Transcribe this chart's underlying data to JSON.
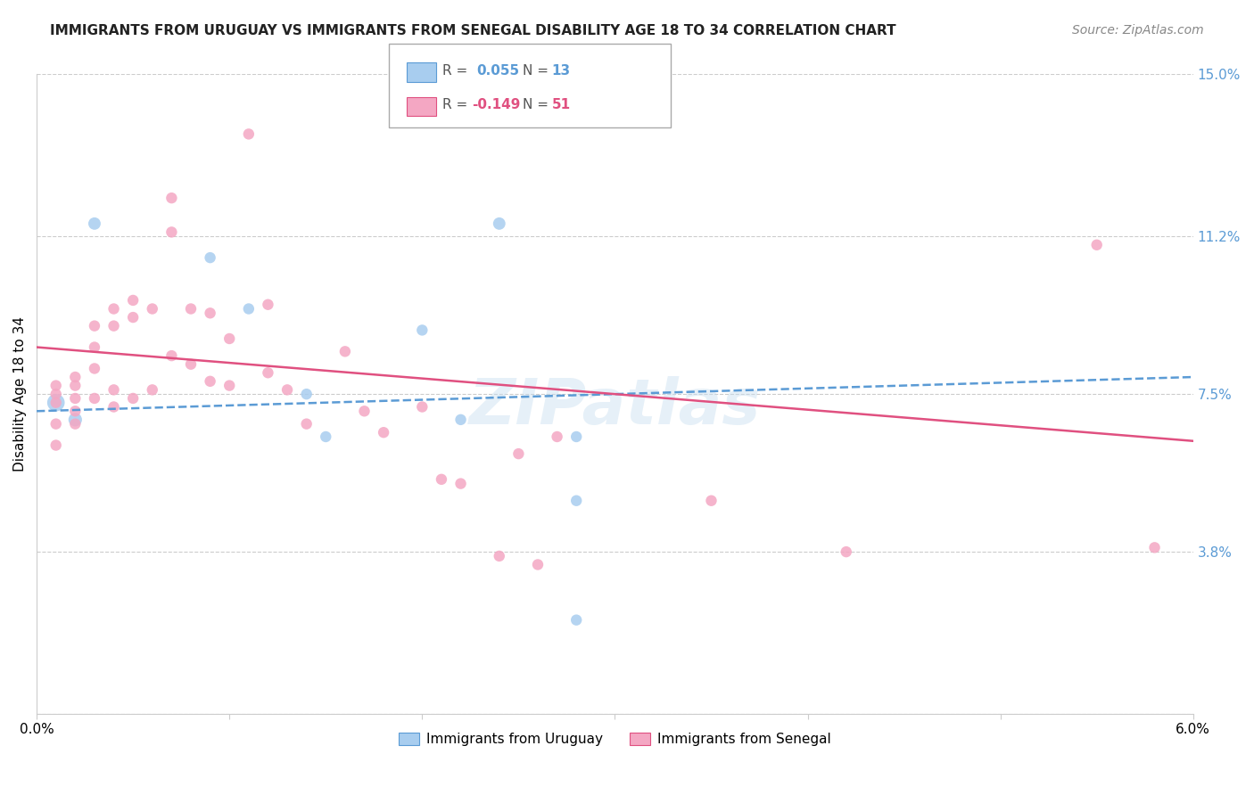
{
  "title": "IMMIGRANTS FROM URUGUAY VS IMMIGRANTS FROM SENEGAL DISABILITY AGE 18 TO 34 CORRELATION CHART",
  "source": "Source: ZipAtlas.com",
  "ylabel": "Disability Age 18 to 34",
  "xlim": [
    0.0,
    0.06
  ],
  "ylim": [
    0.0,
    0.15
  ],
  "xticks": [
    0.0,
    0.01,
    0.02,
    0.03,
    0.04,
    0.05,
    0.06
  ],
  "xticklabels": [
    "0.0%",
    "",
    "",
    "",
    "",
    "",
    "6.0%"
  ],
  "ytick_positions": [
    0.0,
    0.038,
    0.075,
    0.112,
    0.15
  ],
  "ytick_labels": [
    "",
    "3.8%",
    "7.5%",
    "11.2%",
    "15.0%"
  ],
  "grid_color": "#cccccc",
  "background_color": "#ffffff",
  "watermark": "ZIPatlas",
  "series": [
    {
      "name": "Immigrants from Uruguay",
      "R": 0.055,
      "N": 13,
      "marker_color": "#A8CDEF",
      "line_color": "#5B9BD5",
      "line_style": "--",
      "trend_x": [
        0.0,
        0.06
      ],
      "trend_y": [
        0.071,
        0.079
      ],
      "x": [
        0.001,
        0.002,
        0.003,
        0.009,
        0.011,
        0.014,
        0.015,
        0.02,
        0.022,
        0.024,
        0.028,
        0.028,
        0.028
      ],
      "y": [
        0.073,
        0.069,
        0.115,
        0.107,
        0.095,
        0.075,
        0.065,
        0.09,
        0.069,
        0.115,
        0.065,
        0.05,
        0.022
      ],
      "sizes": [
        200,
        120,
        100,
        80,
        80,
        80,
        80,
        80,
        80,
        100,
        80,
        80,
        80
      ]
    },
    {
      "name": "Immigrants from Senegal",
      "R": -0.149,
      "N": 51,
      "marker_color": "#F4A7C3",
      "line_color": "#E05080",
      "line_style": "-",
      "trend_x": [
        0.0,
        0.06
      ],
      "trend_y": [
        0.086,
        0.064
      ],
      "x": [
        0.001,
        0.001,
        0.001,
        0.001,
        0.001,
        0.002,
        0.002,
        0.002,
        0.002,
        0.002,
        0.003,
        0.003,
        0.003,
        0.003,
        0.004,
        0.004,
        0.004,
        0.004,
        0.005,
        0.005,
        0.005,
        0.006,
        0.006,
        0.007,
        0.007,
        0.007,
        0.008,
        0.008,
        0.009,
        0.009,
        0.01,
        0.01,
        0.011,
        0.012,
        0.012,
        0.013,
        0.014,
        0.016,
        0.017,
        0.018,
        0.02,
        0.021,
        0.022,
        0.024,
        0.025,
        0.026,
        0.027,
        0.035,
        0.042,
        0.055,
        0.058
      ],
      "y": [
        0.077,
        0.075,
        0.073,
        0.068,
        0.063,
        0.079,
        0.077,
        0.074,
        0.071,
        0.068,
        0.091,
        0.086,
        0.081,
        0.074,
        0.095,
        0.091,
        0.076,
        0.072,
        0.097,
        0.093,
        0.074,
        0.095,
        0.076,
        0.121,
        0.113,
        0.084,
        0.095,
        0.082,
        0.094,
        0.078,
        0.088,
        0.077,
        0.136,
        0.096,
        0.08,
        0.076,
        0.068,
        0.085,
        0.071,
        0.066,
        0.072,
        0.055,
        0.054,
        0.037,
        0.061,
        0.035,
        0.065,
        0.05,
        0.038,
        0.11,
        0.039
      ],
      "sizes": [
        80,
        80,
        80,
        80,
        80,
        80,
        80,
        80,
        80,
        80,
        80,
        80,
        80,
        80,
        80,
        80,
        80,
        80,
        80,
        80,
        80,
        80,
        80,
        80,
        80,
        80,
        80,
        80,
        80,
        80,
        80,
        80,
        80,
        80,
        80,
        80,
        80,
        80,
        80,
        80,
        80,
        80,
        80,
        80,
        80,
        80,
        80,
        80,
        80,
        80,
        80
      ]
    }
  ],
  "title_fontsize": 11,
  "axis_label_fontsize": 11,
  "tick_fontsize": 11,
  "source_fontsize": 10,
  "tick_color": "#5B9BD5"
}
